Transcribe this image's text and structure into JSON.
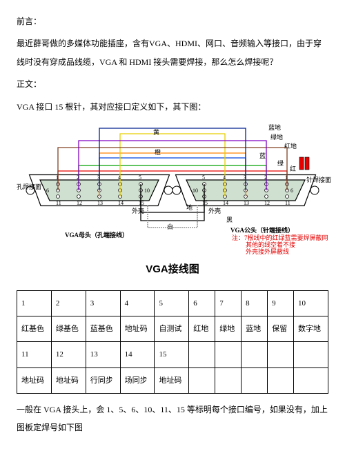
{
  "preface_label": "前言：",
  "preface_body": "最近薛哥做的多媒体功能插座，含有VGA、HDMI、网口、音频输入等接口，由于穿线时没有穿成品线缆，VGA 和 HDMI 接头需要焊接，那么怎么焊接呢？",
  "body_label": "正文：",
  "body_intro": "VGA 接口 15 根针，其对应接口定义如下，其下图：",
  "cutoff": "一般在 VGA 接头上，会 1、5、6、10、11、15 等标明每个接口编号，如果没有，加上图板定焊号如下图",
  "diagram": {
    "title": "VGA接线图",
    "left_conn_label": "孔焊接面",
    "right_conn_label": "针焊接面",
    "left_sub": "VGA母头（孔端接线）",
    "right_sub": "VGA公头（针端接线）",
    "note_line1": "注：7根线中的红绿蓝需要焊屏蔽网",
    "note_line2": "其他的线空着不接",
    "note_line3": "外壳接外屏蔽线",
    "wire_labels": {
      "yellow": "黄",
      "darkblue": "蓝地",
      "green_g": "绿地",
      "orange": "橙",
      "red_g": "红地",
      "blue": "蓝",
      "green": "绿",
      "red": "红",
      "ground": "地",
      "shell": "外壳",
      "black": "黑",
      "white": "白"
    },
    "pin_nums_left": {
      "r1": [
        "1",
        "2",
        "3",
        "4",
        "5"
      ],
      "r2": [
        "6",
        "7",
        "8",
        "9",
        "10"
      ],
      "r3": [
        "11",
        "12",
        "13",
        "14",
        "15"
      ]
    },
    "pin_nums_right": {
      "r1": [
        "5",
        "4",
        "3",
        "2",
        "1"
      ],
      "r2": [
        "10",
        "9",
        "8",
        "7",
        "6"
      ],
      "r3": [
        "15",
        "14",
        "13",
        "12",
        "11"
      ]
    },
    "colors": {
      "red": "#e60000",
      "green": "#00a000",
      "blue": "#0040e0",
      "yellow": "#e6d000",
      "orange": "#ff8000",
      "brown": "#804020",
      "purple": "#8000c0",
      "black": "#000000",
      "white_stroke": "#808080",
      "darkblue": "#002090",
      "shell_fill": "#d0e0d0",
      "pin_hole": "#ffffff",
      "pin_stroke": "#000000"
    }
  },
  "table": {
    "rows": [
      [
        "1",
        "2",
        "3",
        "4",
        "5",
        "6",
        "7",
        "8",
        "9",
        "10"
      ],
      [
        "红基色",
        "绿基色",
        "蓝基色",
        "地址码",
        "自测试",
        "红地",
        "绿地",
        "蓝地",
        "保留",
        "数字地"
      ],
      [
        "11",
        "12",
        "13",
        "14",
        "15",
        "",
        "",
        "",
        "",
        ""
      ],
      [
        "地址码",
        "地址码",
        "行同步",
        "场同步",
        "地址码",
        "",
        "",
        "",
        "",
        ""
      ]
    ]
  }
}
